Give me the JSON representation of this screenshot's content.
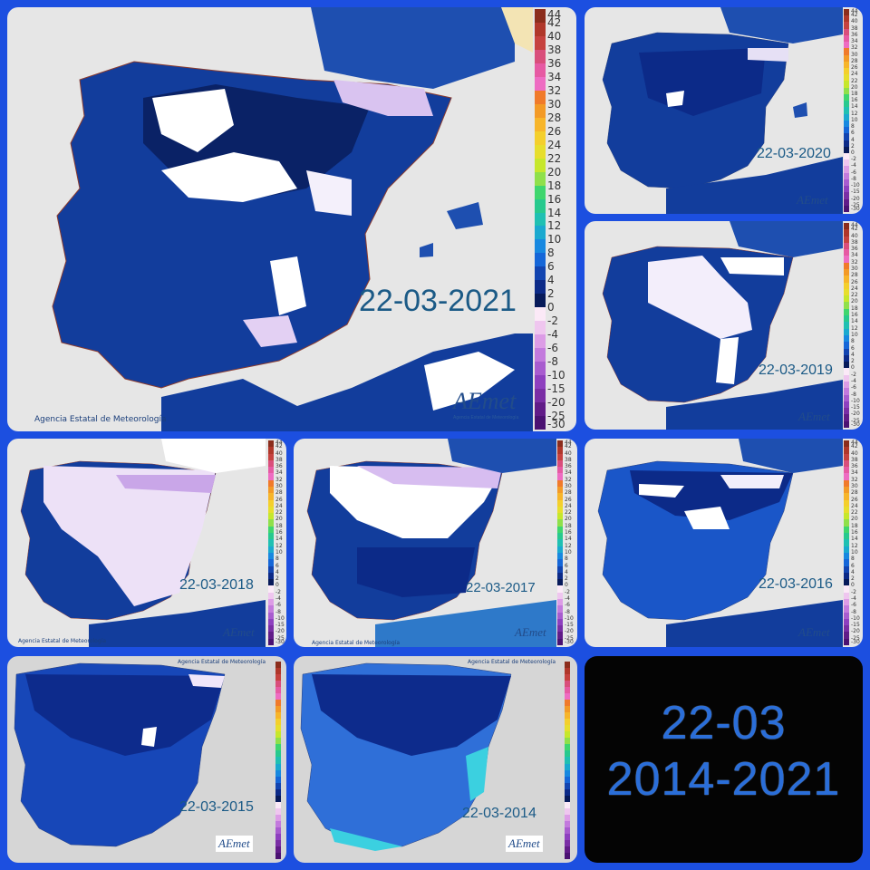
{
  "credit": "Agencia Estatal de Meteorología",
  "logo": {
    "brand": "AEmet",
    "subtitle": "Agencia Estatal de Meteorología"
  },
  "legend_ticks": [
    "44",
    "42",
    "40",
    "38",
    "36",
    "34",
    "32",
    "30",
    "28",
    "26",
    "24",
    "22",
    "20",
    "18",
    "16",
    "14",
    "12",
    "10",
    "8",
    "6",
    "4",
    "2",
    "0",
    "-2",
    "-4",
    "-6",
    "-8",
    "-10",
    "-15",
    "-20",
    "-25",
    "-30"
  ],
  "legend_colors": [
    "#8b2d1c",
    "#b0372a",
    "#c6423f",
    "#d94e7b",
    "#e65aa3",
    "#ee6cc2",
    "#f07a2a",
    "#f39a26",
    "#f7b52a",
    "#f4cf2c",
    "#e7de2d",
    "#c6e72c",
    "#8fe04a",
    "#3fd66e",
    "#27c98e",
    "#1fc0b2",
    "#1aa9cf",
    "#1788e0",
    "#1566d8",
    "#1244b0",
    "#0c2a88",
    "#071a5a",
    "#fbe9f7",
    "#efc6ef",
    "#dc9ce6",
    "#c37add",
    "#a85ccf",
    "#8e40bf",
    "#7a2ea5",
    "#611c88",
    "#4b1272"
  ],
  "panels": [
    {
      "date": "22-03-2021",
      "credit_visible": true
    },
    {
      "date": "22-03-2020",
      "credit_visible": false
    },
    {
      "date": "22-03-2019",
      "credit_visible": false
    },
    {
      "date": "22-03-2018",
      "credit_visible": true
    },
    {
      "date": "22-03-2017",
      "credit_visible": true
    },
    {
      "date": "22-03-2016",
      "credit_visible": false
    },
    {
      "date": "22-03-2015",
      "credit_visible": true
    },
    {
      "date": "22-03-2014",
      "credit_visible": true
    }
  ],
  "summary": {
    "line1": "22-03",
    "line2": "2014-2021"
  }
}
